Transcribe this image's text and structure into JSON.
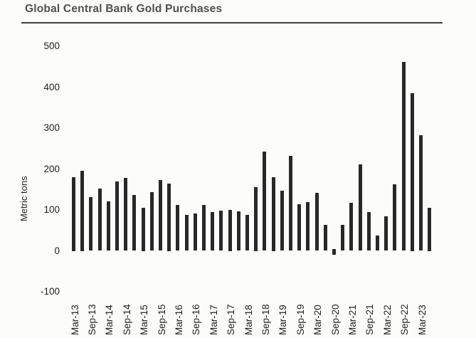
{
  "title": "Global Central Bank Gold Purchases",
  "chart_data": {
    "type": "bar",
    "title": "Global Central Bank Gold Purchases",
    "xlabel": "",
    "ylabel": "Metric tons",
    "categories": [
      "Mar-13",
      "Jun-13",
      "Sep-13",
      "Dec-13",
      "Mar-14",
      "Jun-14",
      "Sep-14",
      "Dec-14",
      "Mar-15",
      "Jun-15",
      "Sep-15",
      "Dec-15",
      "Mar-16",
      "Jun-16",
      "Sep-16",
      "Dec-16",
      "Mar-17",
      "Jun-17",
      "Sep-17",
      "Dec-17",
      "Mar-18",
      "Jun-18",
      "Sep-18",
      "Dec-18",
      "Mar-19",
      "Jun-19",
      "Sep-19",
      "Dec-19",
      "Mar-20",
      "Jun-20",
      "Sep-20",
      "Dec-20",
      "Mar-21",
      "Jun-21",
      "Sep-21",
      "Dec-21",
      "Mar-22",
      "Jun-22",
      "Sep-22",
      "Dec-22",
      "Mar-23",
      "Jun-23"
    ],
    "values": [
      180,
      195,
      131,
      152,
      121,
      169,
      178,
      137,
      105,
      144,
      173,
      165,
      113,
      88,
      92,
      112,
      94,
      99,
      100,
      96,
      87,
      155,
      243,
      180,
      147,
      232,
      114,
      119,
      142,
      64,
      -15,
      63,
      118,
      212,
      94,
      37,
      84,
      162,
      462,
      385,
      283,
      105
    ],
    "x_tick_labels_shown": [
      "Mar-13",
      "Sep-13",
      "Mar-14",
      "Sep-14",
      "Mar-15",
      "Sep-15",
      "Mar-16",
      "Sep-16",
      "Mar-17",
      "Sep-17",
      "Mar-18",
      "Sep-18",
      "Mar-19",
      "Sep-19",
      "Mar-20",
      "Sep-20",
      "Mar-21",
      "Sep-21",
      "Mar-22",
      "Sep-22",
      "Mar-23"
    ],
    "x_label_step": 2,
    "yticks": [
      500,
      400,
      300,
      200,
      100,
      0,
      -100
    ],
    "ylim": [
      -100,
      500
    ],
    "bar_color": "#282828",
    "grid": false,
    "legend_position": "none"
  }
}
